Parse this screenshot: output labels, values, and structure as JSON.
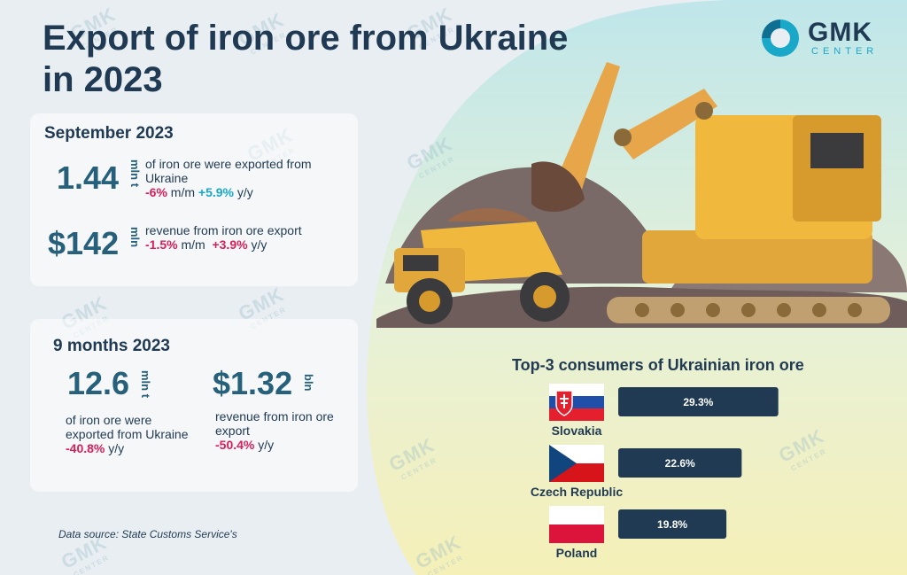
{
  "title": "Export of iron ore from Ukraine in 2023",
  "logo": {
    "name": "GMK",
    "subtitle": "CENTER"
  },
  "september": {
    "heading": "September 2023",
    "ore": {
      "value": "1.44",
      "unit": "mln t",
      "text": "of iron ore were exported from Ukraine",
      "mm_value": "-6%",
      "mm_label": "m/m",
      "yy_value": "+5.9%",
      "yy_label": "y/y"
    },
    "revenue": {
      "value": "$142",
      "unit": "mln",
      "text": "revenue from iron ore export",
      "mm_value": "-1.5%",
      "mm_label": "m/m",
      "yy_value": "+3.9%",
      "yy_label": "y/y"
    }
  },
  "nine_months": {
    "heading": "9 months 2023",
    "ore": {
      "value": "12.6",
      "unit": "mln t",
      "text": "of iron ore were exported from Ukraine",
      "yy_value": "-40.8%",
      "yy_label": "y/y"
    },
    "revenue": {
      "value": "$1.32",
      "unit": "bln",
      "text": "revenue from iron ore export",
      "yy_value": "-50.4%",
      "yy_label": "y/y"
    }
  },
  "source": "Data source: State Customs Service's",
  "colors": {
    "bar": "#1f3a52",
    "accent": "#1aa8c9",
    "negative": "#d81f5a"
  },
  "chart_data": {
    "type": "bar",
    "orientation": "horizontal",
    "title": "Top-3 consumers of Ukrainian iron ore",
    "categories": [
      "Slovakia",
      "Czech Republic",
      "Poland"
    ],
    "values": [
      29.3,
      22.6,
      19.8
    ],
    "value_labels": [
      "29.3%",
      "22.6%",
      "19.8%"
    ],
    "unit": "%",
    "xlim": [
      0,
      30
    ]
  }
}
